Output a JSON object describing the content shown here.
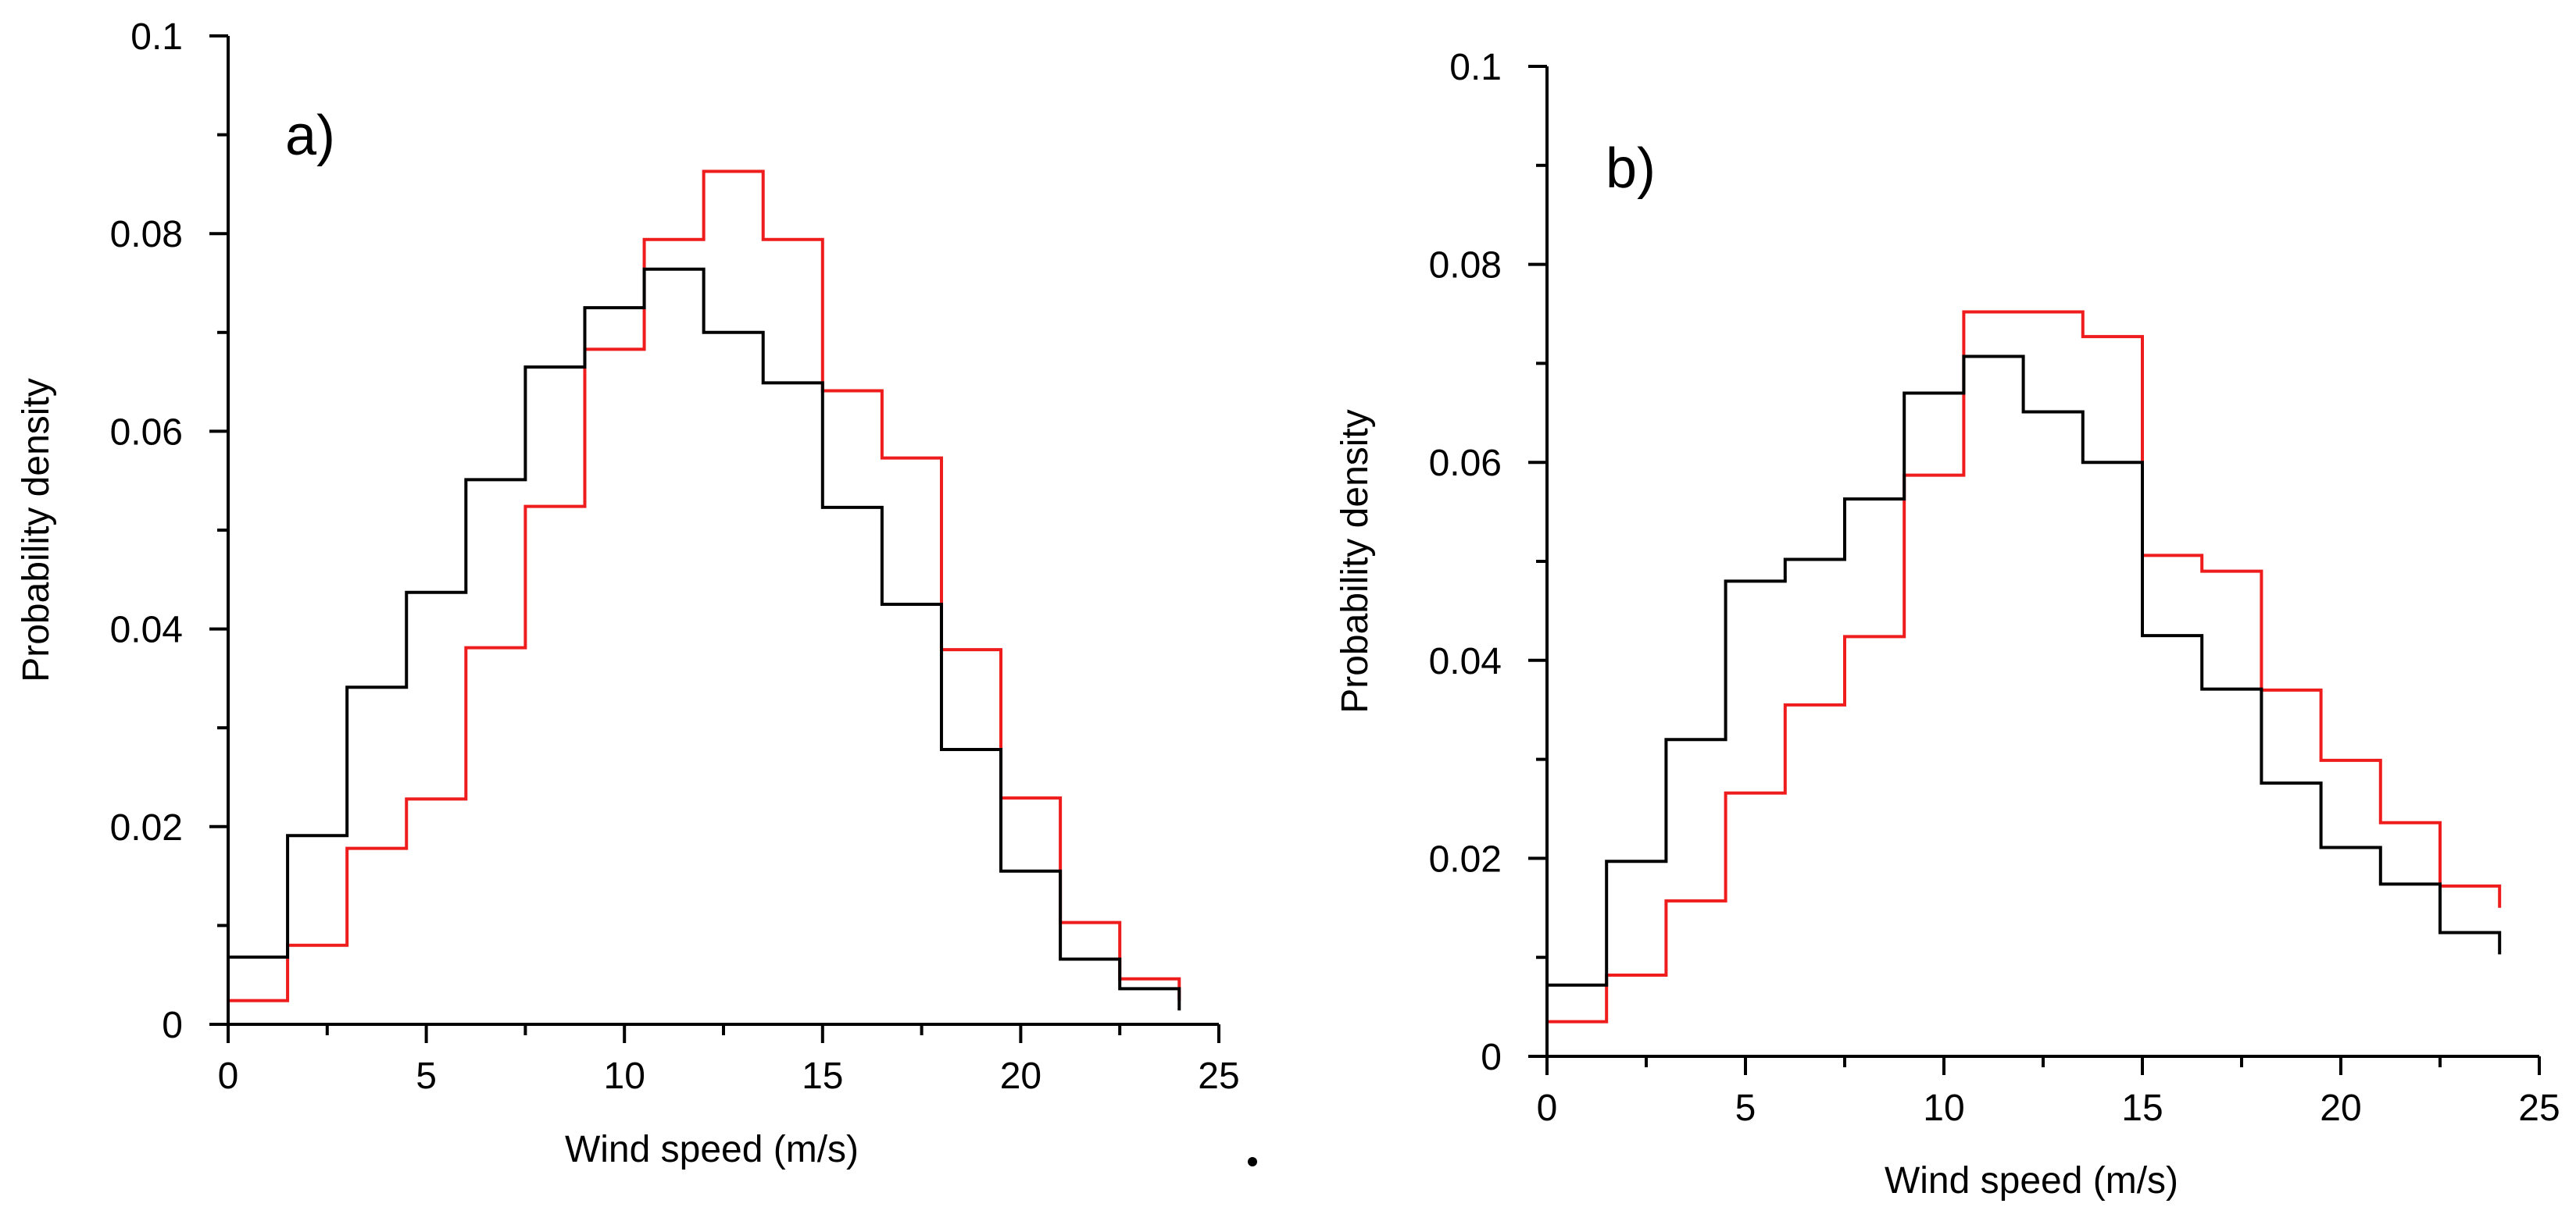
{
  "chart_data": [
    {
      "type": "line",
      "style": "step-histogram",
      "panel_label": "a)",
      "title": "",
      "xlabel": "Wind speed (m/s)",
      "ylabel": "Probability density",
      "xlim": [
        0,
        25
      ],
      "ylim": [
        0,
        0.1
      ],
      "x_ticks": [
        0,
        5,
        10,
        15,
        20,
        25
      ],
      "x_tick_labels": [
        "0",
        "5",
        "10",
        "15",
        "20",
        "25"
      ],
      "y_ticks": [
        0,
        0.02,
        0.04,
        0.06,
        0.08,
        0.1
      ],
      "y_tick_labels": [
        "0",
        "0.02",
        "0.04",
        "0.06",
        "0.08",
        "0.1"
      ],
      "bin_edges": [
        0,
        1.5,
        3,
        4.5,
        6,
        7.5,
        9,
        10.5,
        12,
        13.5,
        15,
        16.5,
        18,
        19.5,
        21,
        22.5,
        24
      ],
      "series": [
        {
          "name": "black",
          "color": "#000000",
          "values": [
            0.0068,
            0.0191,
            0.0341,
            0.0437,
            0.0551,
            0.0665,
            0.0725,
            0.0764,
            0.07,
            0.0649,
            0.0523,
            0.0425,
            0.0278,
            0.0155,
            0.0066,
            0.0036
          ]
        },
        {
          "name": "red",
          "color": "#ee1c1c",
          "values": [
            0.0024,
            0.008,
            0.0178,
            0.0228,
            0.0381,
            0.0524,
            0.0683,
            0.0794,
            0.0863,
            0.0794,
            0.0641,
            0.0573,
            0.0379,
            0.0229,
            0.0103,
            0.0046
          ]
        }
      ]
    },
    {
      "type": "line",
      "style": "step-histogram",
      "panel_label": "b)",
      "title": "",
      "xlabel": "Wind speed (m/s)",
      "ylabel": "Probability density",
      "xlim": [
        0,
        25
      ],
      "ylim": [
        0,
        0.1
      ],
      "x_ticks": [
        0,
        5,
        10,
        15,
        20,
        25
      ],
      "x_tick_labels": [
        "0",
        "5",
        "10",
        "15",
        "20",
        "25"
      ],
      "y_ticks": [
        0,
        0.02,
        0.04,
        0.06,
        0.08,
        0.1
      ],
      "y_tick_labels": [
        "0",
        "0.02",
        "0.04",
        "0.06",
        "0.08",
        "0.1"
      ],
      "bin_edges": [
        0,
        1.5,
        3,
        4.5,
        6,
        7.5,
        9,
        10.5,
        12,
        13.5,
        15,
        16.5,
        18,
        19.5,
        21,
        22.5,
        24
      ],
      "series": [
        {
          "name": "black",
          "color": "#000000",
          "values": [
            0.0072,
            0.0197,
            0.032,
            0.048,
            0.0502,
            0.0563,
            0.067,
            0.0707,
            0.0651,
            0.06,
            0.0425,
            0.0371,
            0.0276,
            0.0211,
            0.0174,
            0.0125
          ]
        },
        {
          "name": "red",
          "color": "#ee1c1c",
          "values": [
            0.0035,
            0.0082,
            0.0157,
            0.0266,
            0.0355,
            0.0424,
            0.0587,
            0.0752,
            0.0752,
            0.0727,
            0.0506,
            0.049,
            0.037,
            0.0299,
            0.0236,
            0.0172
          ]
        }
      ]
    }
  ]
}
